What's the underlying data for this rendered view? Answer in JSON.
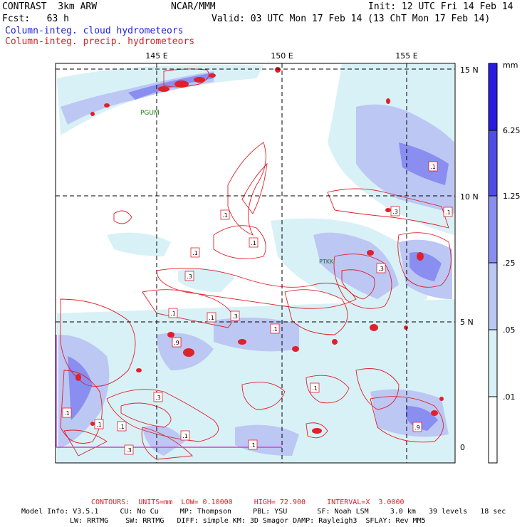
{
  "header": {
    "title": "CONTRAST  3km ARW",
    "center": "NCAR/MMM",
    "init": "Init: 12 UTC Fri 14 Feb 14",
    "fcst": "Fcst:   63 h",
    "valid": "Valid: 03 UTC Mon 17 Feb 14 (13 ChT Mon 17 Feb 14)",
    "legend_cloud": "Column-integ. cloud hydrometeors",
    "legend_precip": "Column-integ. precip. hydrometeors"
  },
  "map": {
    "lon_labels": [
      "145 E",
      "150 E",
      "155 E"
    ],
    "lat_labels": [
      "15 N",
      "10 N",
      "5 N",
      "0"
    ],
    "stations": [
      "PGUM",
      "PTKK"
    ],
    "contour_labels": [
      ".1",
      ".1",
      ".1",
      ".3",
      ".1",
      ".1",
      ".3",
      ".9",
      ".1",
      ".3",
      ".1",
      ".3",
      ".1",
      ".9",
      ".1",
      ".3",
      ".1",
      ".1",
      ".1",
      ".3",
      ".1",
      ".1",
      ".9",
      ".1"
    ]
  },
  "colorbar": {
    "unit": "mm",
    "levels": [
      "6.25",
      "1.25",
      ".25",
      ".05",
      ".01"
    ],
    "colors": [
      "#2b1be0",
      "#4f4ce8",
      "#8a8ef0",
      "#bcc7f4",
      "#d8f1f6",
      "#ffffff"
    ]
  },
  "footer": {
    "contours": "CONTOURS:  UNITS=mm  LOW= 0.10000     HIGH= 72.900     INTERVAL=X  3.0000",
    "model_line1": "Model Info: V3.5.1     CU: No Cu     MP: Thompson     PBL: YSU       SF: Noah LSM     3.0 km   39 levels   18 sec",
    "model_line2": "LW: RRTMG    SW: RRTMG   DIFF: simple KM: 3D Smagor DAMP: Rayleigh3  SFLAY: Rev MM5"
  }
}
